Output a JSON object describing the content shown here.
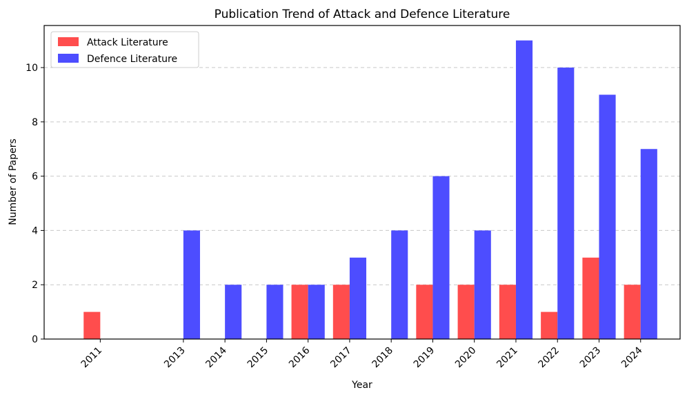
{
  "chart_data": {
    "type": "bar",
    "title": "Publication Trend of Attack and Defence Literature",
    "xlabel": "Year",
    "ylabel": "Number of Papers",
    "ylim": [
      0,
      11.55
    ],
    "yticks": [
      0,
      2,
      4,
      6,
      8,
      10
    ],
    "categories": [
      "2011",
      "2013",
      "2014",
      "2015",
      "2016",
      "2017",
      "2018",
      "2019",
      "2020",
      "2021",
      "2022",
      "2023",
      "2024"
    ],
    "x": [
      2011,
      2013,
      2014,
      2015,
      2016,
      2017,
      2018,
      2019,
      2020,
      2021,
      2022,
      2023,
      2024
    ],
    "series": [
      {
        "name": "Attack Literature",
        "color": "#ff4d4d",
        "values": [
          1,
          0,
          0,
          0,
          2,
          2,
          0,
          2,
          2,
          2,
          1,
          3,
          2
        ]
      },
      {
        "name": "Defence Literature",
        "color": "#4d4dff",
        "values": [
          0,
          4,
          2,
          2,
          2,
          3,
          4,
          6,
          4,
          11,
          10,
          9,
          7
        ]
      }
    ],
    "grid": "y-dashed",
    "legend": "top-left"
  }
}
